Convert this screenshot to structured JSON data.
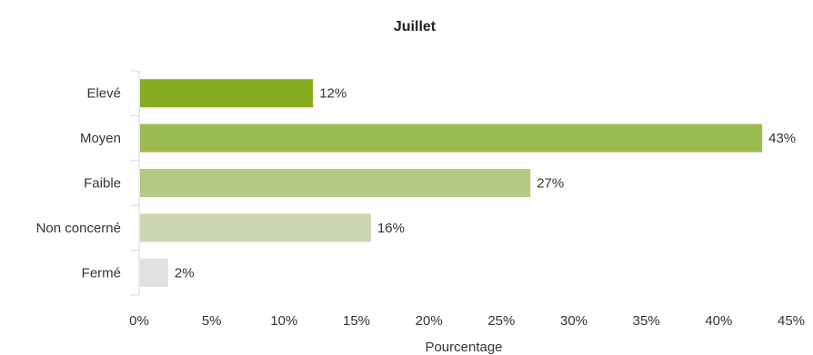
{
  "chart_data": {
    "type": "bar",
    "orientation": "horizontal",
    "title": "Juillet",
    "xlabel": "Pourcentage",
    "ylabel": "",
    "categories": [
      "Elevé",
      "Moyen",
      "Faible",
      "Non concerné",
      "Fermé"
    ],
    "values": [
      12,
      43,
      27,
      16,
      2
    ],
    "data_labels": [
      "12%",
      "43%",
      "27%",
      "16%",
      "2%"
    ],
    "colors": [
      "#86ac20",
      "#9cbb51",
      "#b5c985",
      "#ccd6b4",
      "#e0e0e0"
    ],
    "xlim": [
      0,
      45
    ],
    "xticks": [
      0,
      5,
      10,
      15,
      20,
      25,
      30,
      35,
      40,
      45
    ],
    "xtick_labels": [
      "0%",
      "5%",
      "10%",
      "15%",
      "20%",
      "25%",
      "30%",
      "35%",
      "40%",
      "45%"
    ],
    "grid": false,
    "legend": "none"
  }
}
